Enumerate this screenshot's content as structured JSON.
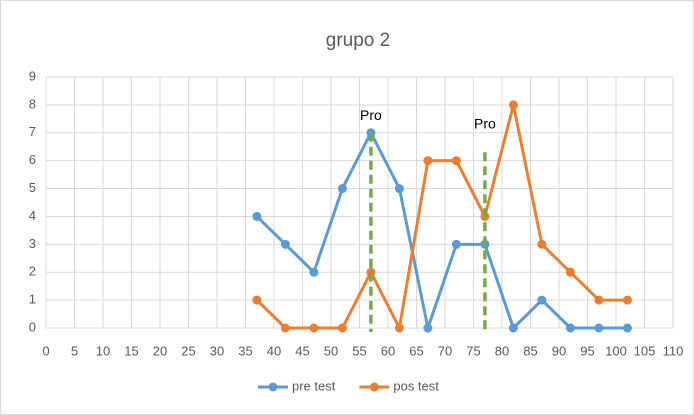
{
  "chart_data": {
    "type": "line",
    "title": "grupo 2",
    "x": [
      37,
      42,
      47,
      52,
      57,
      62,
      67,
      72,
      77,
      82,
      87,
      92,
      97,
      102
    ],
    "series": [
      {
        "name": "pre test",
        "color": "#5b9bd5",
        "values": [
          4,
          3,
          2,
          5,
          7,
          5,
          0,
          3,
          3,
          0,
          1,
          0,
          0,
          0
        ]
      },
      {
        "name": "pos test",
        "color": "#ed7d31",
        "values": [
          1,
          0,
          0,
          0,
          2,
          0,
          6,
          6,
          4,
          8,
          3,
          2,
          1,
          1
        ]
      }
    ],
    "xlim": [
      0,
      110
    ],
    "xticks": [
      0,
      5,
      10,
      15,
      20,
      25,
      30,
      35,
      40,
      45,
      50,
      55,
      60,
      65,
      70,
      75,
      80,
      85,
      90,
      95,
      100,
      105,
      110
    ],
    "ylim": [
      0,
      9
    ],
    "yticks": [
      0,
      1,
      2,
      3,
      4,
      5,
      6,
      7,
      8,
      9
    ],
    "grid": true,
    "legend": "bottom",
    "annotations": [
      {
        "text": "Pro",
        "x": 57,
        "y": 7.8
      },
      {
        "text": "Pro",
        "x": 77,
        "y": 7.5
      }
    ],
    "reference_lines": [
      {
        "x": 57,
        "ymax": 7,
        "color": "#70ad47"
      },
      {
        "x": 77,
        "ymax": 6.3,
        "color": "#70ad47"
      }
    ]
  }
}
